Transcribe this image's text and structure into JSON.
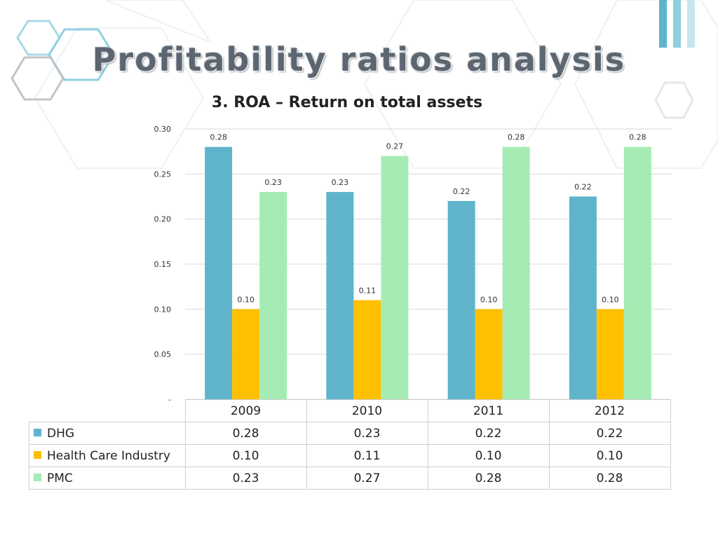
{
  "slide": {
    "title": "Profitability ratios analysis"
  },
  "chart_data": {
    "type": "bar",
    "title": "3. ROA – Return on total assets",
    "categories": [
      "2009",
      "2010",
      "2011",
      "2012"
    ],
    "ylim": [
      0,
      0.3
    ],
    "yticks": [
      0,
      0.05,
      0.1,
      0.15,
      0.2,
      0.25,
      0.3
    ],
    "ytick_labels": [
      "-",
      "0.05",
      "0.10",
      "0.15",
      "0.20",
      "0.25",
      "0.30"
    ],
    "grid": true,
    "legend": "data-table",
    "series": [
      {
        "name": "DHG",
        "color": "#5fb4cc",
        "values": [
          0.28,
          0.23,
          0.22,
          0.225
        ],
        "labels": [
          "0.28",
          "0.23",
          "0.22",
          "0.22"
        ]
      },
      {
        "name": "Health Care Industry",
        "color": "#ffc000",
        "values": [
          0.1,
          0.11,
          0.1,
          0.1
        ],
        "labels": [
          "0.10",
          "0.11",
          "0.10",
          "0.10"
        ]
      },
      {
        "name": "PMC",
        "color": "#a6ebb4",
        "values": [
          0.23,
          0.27,
          0.28,
          0.28
        ],
        "labels": [
          "0.23",
          "0.27",
          "0.28",
          "0.28"
        ]
      }
    ]
  }
}
